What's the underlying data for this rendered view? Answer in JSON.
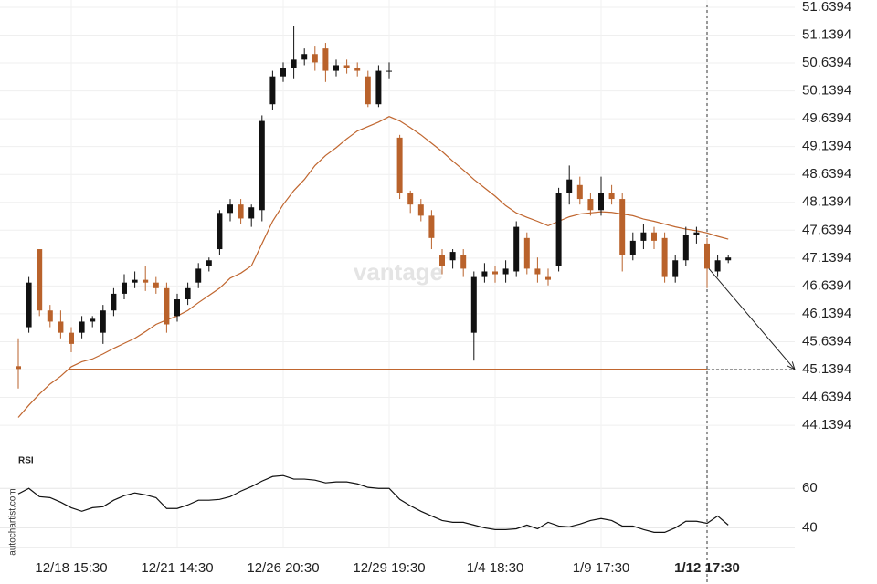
{
  "chart_data": [
    {
      "type": "candlestick",
      "watermark": "vantage",
      "ylim": [
        44.01,
        51.77
      ],
      "yticks": [
        51.6394,
        51.1394,
        50.6394,
        50.1394,
        49.6394,
        49.1394,
        48.6394,
        48.1394,
        47.6394,
        47.1394,
        46.6394,
        46.1394,
        45.6394,
        45.1394,
        44.6394,
        44.1394
      ],
      "grid": true,
      "up_color": "#111111",
      "down_color": "#b9622b",
      "level": 45.14,
      "level_color": "#c0662f",
      "open": [
        45.2,
        45.9,
        47.3,
        46.2,
        46.0,
        45.8,
        45.8,
        46.0,
        45.8,
        46.2,
        46.5,
        46.7,
        46.75,
        46.7,
        46.6,
        46.1,
        46.4,
        46.7,
        47.0,
        47.3,
        47.95,
        48.1,
        47.85,
        48.0,
        49.9,
        50.4,
        50.55,
        50.7,
        50.8,
        50.9,
        50.5,
        50.6,
        50.55,
        50.4,
        49.9,
        50.5,
        49.3,
        48.3,
        48.1,
        47.9,
        47.2,
        47.1,
        47.2,
        45.8,
        46.8,
        46.9,
        46.85,
        46.9,
        47.5,
        46.95,
        46.8,
        47.0,
        48.3,
        48.45,
        48.2,
        48.0,
        48.3,
        48.2,
        47.2,
        47.45,
        47.6,
        47.5,
        46.8,
        47.1,
        47.55,
        47.4,
        46.9,
        47.1
      ],
      "high": [
        45.7,
        46.8,
        47.3,
        46.3,
        46.2,
        45.9,
        46.1,
        46.1,
        46.3,
        46.6,
        46.85,
        46.9,
        47.0,
        46.8,
        46.7,
        46.5,
        46.7,
        47.05,
        47.15,
        48.0,
        48.2,
        48.2,
        48.1,
        49.7,
        50.5,
        50.65,
        51.3,
        50.9,
        50.95,
        51.0,
        50.7,
        50.7,
        50.65,
        50.5,
        50.6,
        50.65,
        49.35,
        48.35,
        48.2,
        48.0,
        47.3,
        47.3,
        47.3,
        46.9,
        47.05,
        47.0,
        47.1,
        47.8,
        47.6,
        47.15,
        46.95,
        48.4,
        48.8,
        48.6,
        48.3,
        48.6,
        48.45,
        48.3,
        47.6,
        47.75,
        47.7,
        47.6,
        47.2,
        47.7,
        47.7,
        47.5,
        47.2,
        47.2
      ],
      "low": [
        44.8,
        45.8,
        46.1,
        45.9,
        45.7,
        45.45,
        45.7,
        45.9,
        45.6,
        46.1,
        46.4,
        46.6,
        46.55,
        46.5,
        45.8,
        46.0,
        46.3,
        46.6,
        46.9,
        47.2,
        47.8,
        47.75,
        47.7,
        47.8,
        49.8,
        50.3,
        50.35,
        50.6,
        50.5,
        50.3,
        50.4,
        50.45,
        50.4,
        49.85,
        49.85,
        50.35,
        48.2,
        47.95,
        47.8,
        47.3,
        46.85,
        46.95,
        46.8,
        45.3,
        46.7,
        46.7,
        46.7,
        46.8,
        46.85,
        46.7,
        46.65,
        46.9,
        48.1,
        48.1,
        47.9,
        47.9,
        48.1,
        46.9,
        47.1,
        47.3,
        47.3,
        46.7,
        46.7,
        47.0,
        47.4,
        46.6,
        46.8,
        47.05
      ],
      "close": [
        45.15,
        46.7,
        46.2,
        46.0,
        45.8,
        45.6,
        46.0,
        46.05,
        46.2,
        46.5,
        46.7,
        46.75,
        46.7,
        46.6,
        45.95,
        46.4,
        46.6,
        46.95,
        47.1,
        47.95,
        48.1,
        47.85,
        48.05,
        49.6,
        50.4,
        50.55,
        50.7,
        50.8,
        50.65,
        50.5,
        50.6,
        50.55,
        50.5,
        49.9,
        50.5,
        50.5,
        48.3,
        48.1,
        47.9,
        47.5,
        47.0,
        47.25,
        46.95,
        46.8,
        46.9,
        46.85,
        46.95,
        47.7,
        46.95,
        46.85,
        46.75,
        48.3,
        48.55,
        48.2,
        48.0,
        48.3,
        48.2,
        47.2,
        47.45,
        47.6,
        47.45,
        46.8,
        47.1,
        47.55,
        47.6,
        46.95,
        47.1,
        47.15
      ],
      "moving_average": {
        "color": "#c0662f",
        "values": [
          44.28,
          44.5,
          44.7,
          44.88,
          45.02,
          45.19,
          45.28,
          45.33,
          45.42,
          45.52,
          45.61,
          45.7,
          45.82,
          45.95,
          46.03,
          46.1,
          46.2,
          46.34,
          46.47,
          46.6,
          46.78,
          46.87,
          47.0,
          47.4,
          47.8,
          48.1,
          48.35,
          48.55,
          48.8,
          48.98,
          49.12,
          49.28,
          49.42,
          49.5,
          49.58,
          49.68,
          49.6,
          49.48,
          49.35,
          49.2,
          49.05,
          48.88,
          48.72,
          48.55,
          48.4,
          48.25,
          48.08,
          47.95,
          47.87,
          47.8,
          47.72,
          47.8,
          47.88,
          47.93,
          47.95,
          47.97,
          47.96,
          47.93,
          47.9,
          47.84,
          47.8,
          47.75,
          47.7,
          47.66,
          47.63,
          47.59,
          47.53,
          47.48
        ]
      }
    },
    {
      "type": "line",
      "title": "RSI",
      "source": "autochartist.com",
      "color": "#111111",
      "ylim": [
        30,
        74
      ],
      "yticks": [
        60,
        40
      ],
      "grid": true,
      "categories": [
        null,
        null,
        null,
        null,
        null,
        "12/18 15:30",
        null,
        null,
        null,
        null,
        null,
        null,
        null,
        null,
        null,
        "12/21 14:30",
        null,
        null,
        null,
        null,
        null,
        null,
        null,
        null,
        null,
        "12/26 20:30",
        null,
        null,
        null,
        null,
        null,
        null,
        null,
        null,
        null,
        "12/29 19:30",
        null,
        null,
        null,
        null,
        null,
        null,
        null,
        null,
        null,
        "1/4 18:30",
        null,
        null,
        null,
        null,
        null,
        null,
        null,
        null,
        null,
        "1/9 17:30",
        null,
        null,
        null,
        null,
        null,
        null,
        null,
        null,
        null,
        "1/12 17:30",
        null,
        null
      ],
      "values": [
        57.2,
        60,
        55.8,
        55.3,
        53,
        50.2,
        48.4,
        50.2,
        50.7,
        54,
        56.3,
        57.7,
        56.7,
        55.3,
        49.8,
        49.8,
        51.6,
        54,
        54,
        54.4,
        55.8,
        58.6,
        60.9,
        63.7,
        66,
        66.5,
        64.7,
        64.7,
        64.2,
        62.8,
        63.3,
        63.3,
        62.3,
        60.5,
        60,
        60,
        54.4,
        51.2,
        48.4,
        46,
        43.7,
        42.8,
        42.8,
        41.4,
        40,
        39.1,
        39.1,
        39.5,
        41.4,
        39.5,
        42.8,
        40.9,
        40.5,
        41.9,
        43.7,
        44.7,
        43.7,
        40.9,
        40.9,
        39.1,
        37.7,
        37.7,
        40,
        43.3,
        43.3,
        42.3,
        46,
        41.4
      ]
    }
  ]
}
